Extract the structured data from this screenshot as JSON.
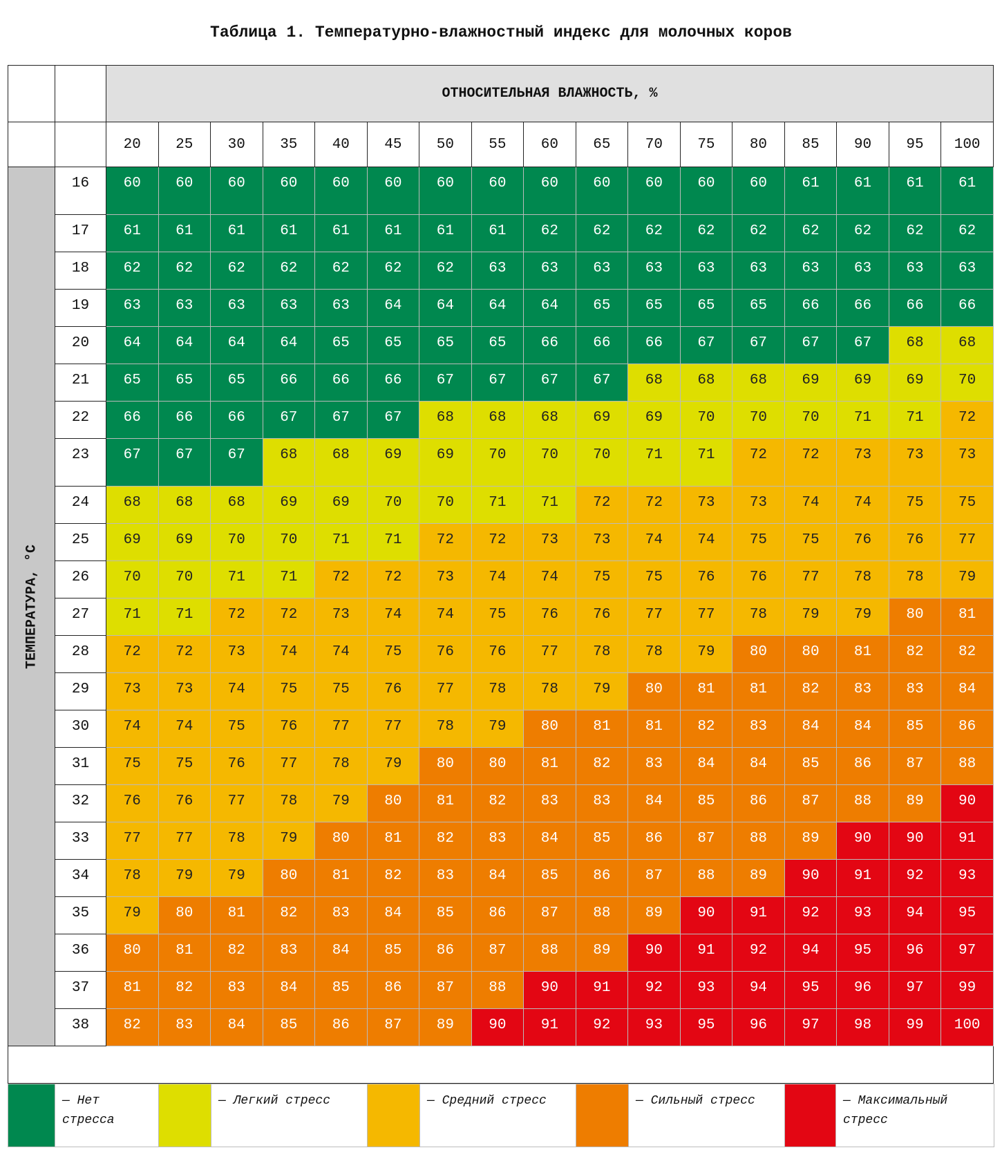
{
  "title": "Таблица 1. Температурно-влажностный индекс для молочных коров",
  "table": {
    "humidity_header": "ОТНОСИТЕЛЬНАЯ ВЛАЖНОСТЬ, %",
    "temperature_header": "ТЕМПЕРАТУРА, °C",
    "humidity": [
      20,
      25,
      30,
      35,
      40,
      45,
      50,
      55,
      60,
      65,
      70,
      75,
      80,
      85,
      90,
      95,
      100
    ],
    "rows": [
      {
        "temperature": 16,
        "values": [
          60,
          60,
          60,
          60,
          60,
          60,
          60,
          60,
          60,
          60,
          60,
          60,
          60,
          61,
          61,
          61,
          61
        ],
        "levels": [
          0,
          0,
          0,
          0,
          0,
          0,
          0,
          0,
          0,
          0,
          0,
          0,
          0,
          0,
          0,
          0,
          0
        ]
      },
      {
        "temperature": 17,
        "values": [
          61,
          61,
          61,
          61,
          61,
          61,
          61,
          61,
          62,
          62,
          62,
          62,
          62,
          62,
          62,
          62,
          62
        ],
        "levels": [
          0,
          0,
          0,
          0,
          0,
          0,
          0,
          0,
          0,
          0,
          0,
          0,
          0,
          0,
          0,
          0,
          0
        ]
      },
      {
        "temperature": 18,
        "values": [
          62,
          62,
          62,
          62,
          62,
          62,
          62,
          63,
          63,
          63,
          63,
          63,
          63,
          63,
          63,
          63,
          63
        ],
        "levels": [
          0,
          0,
          0,
          0,
          0,
          0,
          0,
          0,
          0,
          0,
          0,
          0,
          0,
          0,
          0,
          0,
          0
        ]
      },
      {
        "temperature": 19,
        "values": [
          63,
          63,
          63,
          63,
          63,
          64,
          64,
          64,
          64,
          65,
          65,
          65,
          65,
          66,
          66,
          66,
          66
        ],
        "levels": [
          0,
          0,
          0,
          0,
          0,
          0,
          0,
          0,
          0,
          0,
          0,
          0,
          0,
          0,
          0,
          0,
          0
        ]
      },
      {
        "temperature": 20,
        "values": [
          64,
          64,
          64,
          64,
          65,
          65,
          65,
          65,
          66,
          66,
          66,
          67,
          67,
          67,
          67,
          68,
          68
        ],
        "levels": [
          0,
          0,
          0,
          0,
          0,
          0,
          0,
          0,
          0,
          0,
          0,
          0,
          0,
          0,
          0,
          1,
          1
        ]
      },
      {
        "temperature": 21,
        "values": [
          65,
          65,
          65,
          66,
          66,
          66,
          67,
          67,
          67,
          67,
          68,
          68,
          68,
          69,
          69,
          69,
          70
        ],
        "levels": [
          0,
          0,
          0,
          0,
          0,
          0,
          0,
          0,
          0,
          0,
          1,
          1,
          1,
          1,
          1,
          1,
          1
        ]
      },
      {
        "temperature": 22,
        "values": [
          66,
          66,
          66,
          67,
          67,
          67,
          68,
          68,
          68,
          69,
          69,
          70,
          70,
          70,
          71,
          71,
          72
        ],
        "levels": [
          0,
          0,
          0,
          0,
          0,
          0,
          1,
          1,
          1,
          1,
          1,
          1,
          1,
          1,
          1,
          1,
          2
        ]
      },
      {
        "temperature": 23,
        "values": [
          67,
          67,
          67,
          68,
          68,
          69,
          69,
          70,
          70,
          70,
          71,
          71,
          72,
          72,
          73,
          73,
          73
        ],
        "levels": [
          0,
          0,
          0,
          1,
          1,
          1,
          1,
          1,
          1,
          1,
          1,
          1,
          2,
          2,
          2,
          2,
          2
        ]
      },
      {
        "temperature": 24,
        "values": [
          68,
          68,
          68,
          69,
          69,
          70,
          70,
          71,
          71,
          72,
          72,
          73,
          73,
          74,
          74,
          75,
          75
        ],
        "levels": [
          1,
          1,
          1,
          1,
          1,
          1,
          1,
          1,
          1,
          2,
          2,
          2,
          2,
          2,
          2,
          2,
          2
        ]
      },
      {
        "temperature": 25,
        "values": [
          69,
          69,
          70,
          70,
          71,
          71,
          72,
          72,
          73,
          73,
          74,
          74,
          75,
          75,
          76,
          76,
          77
        ],
        "levels": [
          1,
          1,
          1,
          1,
          1,
          1,
          2,
          2,
          2,
          2,
          2,
          2,
          2,
          2,
          2,
          2,
          2
        ]
      },
      {
        "temperature": 26,
        "values": [
          70,
          70,
          71,
          71,
          72,
          72,
          73,
          74,
          74,
          75,
          75,
          76,
          76,
          77,
          78,
          78,
          79
        ],
        "levels": [
          1,
          1,
          1,
          1,
          2,
          2,
          2,
          2,
          2,
          2,
          2,
          2,
          2,
          2,
          2,
          2,
          2
        ]
      },
      {
        "temperature": 27,
        "values": [
          71,
          71,
          72,
          72,
          73,
          74,
          74,
          75,
          76,
          76,
          77,
          77,
          78,
          79,
          79,
          80,
          81
        ],
        "levels": [
          1,
          1,
          2,
          2,
          2,
          2,
          2,
          2,
          2,
          2,
          2,
          2,
          2,
          2,
          2,
          3,
          3
        ]
      },
      {
        "temperature": 28,
        "values": [
          72,
          72,
          73,
          74,
          74,
          75,
          76,
          76,
          77,
          78,
          78,
          79,
          80,
          80,
          81,
          82,
          82
        ],
        "levels": [
          2,
          2,
          2,
          2,
          2,
          2,
          2,
          2,
          2,
          2,
          2,
          2,
          3,
          3,
          3,
          3,
          3
        ]
      },
      {
        "temperature": 29,
        "values": [
          73,
          73,
          74,
          75,
          75,
          76,
          77,
          78,
          78,
          79,
          80,
          81,
          81,
          82,
          83,
          83,
          84
        ],
        "levels": [
          2,
          2,
          2,
          2,
          2,
          2,
          2,
          2,
          2,
          2,
          3,
          3,
          3,
          3,
          3,
          3,
          3
        ]
      },
      {
        "temperature": 30,
        "values": [
          74,
          74,
          75,
          76,
          77,
          77,
          78,
          79,
          80,
          81,
          81,
          82,
          83,
          84,
          84,
          85,
          86
        ],
        "levels": [
          2,
          2,
          2,
          2,
          2,
          2,
          2,
          2,
          3,
          3,
          3,
          3,
          3,
          3,
          3,
          3,
          3
        ]
      },
      {
        "temperature": 31,
        "values": [
          75,
          75,
          76,
          77,
          78,
          79,
          80,
          80,
          81,
          82,
          83,
          84,
          84,
          85,
          86,
          87,
          88
        ],
        "levels": [
          2,
          2,
          2,
          2,
          2,
          2,
          3,
          3,
          3,
          3,
          3,
          3,
          3,
          3,
          3,
          3,
          3
        ]
      },
      {
        "temperature": 32,
        "values": [
          76,
          76,
          77,
          78,
          79,
          80,
          81,
          82,
          83,
          83,
          84,
          85,
          86,
          87,
          88,
          89,
          90
        ],
        "levels": [
          2,
          2,
          2,
          2,
          2,
          3,
          3,
          3,
          3,
          3,
          3,
          3,
          3,
          3,
          3,
          3,
          4
        ]
      },
      {
        "temperature": 33,
        "values": [
          77,
          77,
          78,
          79,
          80,
          81,
          82,
          83,
          84,
          85,
          86,
          87,
          88,
          89,
          90,
          90,
          91
        ],
        "levels": [
          2,
          2,
          2,
          2,
          3,
          3,
          3,
          3,
          3,
          3,
          3,
          3,
          3,
          3,
          4,
          4,
          4
        ]
      },
      {
        "temperature": 34,
        "values": [
          78,
          79,
          79,
          80,
          81,
          82,
          83,
          84,
          85,
          86,
          87,
          88,
          89,
          90,
          91,
          92,
          93
        ],
        "levels": [
          2,
          2,
          2,
          3,
          3,
          3,
          3,
          3,
          3,
          3,
          3,
          3,
          3,
          4,
          4,
          4,
          4
        ]
      },
      {
        "temperature": 35,
        "values": [
          79,
          80,
          81,
          82,
          83,
          84,
          85,
          86,
          87,
          88,
          89,
          90,
          91,
          92,
          93,
          94,
          95
        ],
        "levels": [
          2,
          3,
          3,
          3,
          3,
          3,
          3,
          3,
          3,
          3,
          3,
          4,
          4,
          4,
          4,
          4,
          4
        ]
      },
      {
        "temperature": 36,
        "values": [
          80,
          81,
          82,
          83,
          84,
          85,
          86,
          87,
          88,
          89,
          90,
          91,
          92,
          94,
          95,
          96,
          97
        ],
        "levels": [
          3,
          3,
          3,
          3,
          3,
          3,
          3,
          3,
          3,
          3,
          4,
          4,
          4,
          4,
          4,
          4,
          4
        ]
      },
      {
        "temperature": 37,
        "values": [
          81,
          82,
          83,
          84,
          85,
          86,
          87,
          88,
          90,
          91,
          92,
          93,
          94,
          95,
          96,
          97,
          99
        ],
        "levels": [
          3,
          3,
          3,
          3,
          3,
          3,
          3,
          3,
          4,
          4,
          4,
          4,
          4,
          4,
          4,
          4,
          4
        ]
      },
      {
        "temperature": 38,
        "values": [
          82,
          83,
          84,
          85,
          86,
          87,
          89,
          90,
          91,
          92,
          93,
          95,
          96,
          97,
          98,
          99,
          100
        ],
        "levels": [
          3,
          3,
          3,
          3,
          3,
          3,
          3,
          4,
          4,
          4,
          4,
          4,
          4,
          4,
          4,
          4,
          4
        ]
      }
    ]
  },
  "legend": [
    {
      "label": "— Нет стресса",
      "color": "#00884f",
      "text_color": "#ffffff"
    },
    {
      "label": "— Легкий стресс",
      "color": "#dede00",
      "text_color": "#222222"
    },
    {
      "label": "— Средний стресс",
      "color": "#f5b800",
      "text_color": "#222222"
    },
    {
      "label": "— Сильный стресс",
      "color": "#ee7d00",
      "text_color": "#ffffff"
    },
    {
      "label": "— Максимальный стресс",
      "color": "#e30613",
      "text_color": "#ffffff"
    }
  ]
}
